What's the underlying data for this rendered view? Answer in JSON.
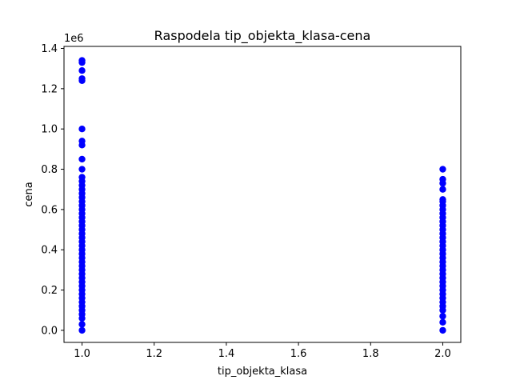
{
  "chart_data": {
    "type": "scatter",
    "title": "Raspodela tip_objekta_klasa-cena",
    "xlabel": "tip_objekta_klasa",
    "ylabel": "cena",
    "y_offset_label": "1e6",
    "xlim": [
      0.95,
      2.05
    ],
    "ylim": [
      -60000,
      1410000
    ],
    "x_ticks": [
      1.0,
      1.2,
      1.4,
      1.6,
      1.8,
      2.0
    ],
    "x_tick_labels": [
      "1.0",
      "1.2",
      "1.4",
      "1.6",
      "1.8",
      "2.0"
    ],
    "y_ticks": [
      0,
      200000,
      400000,
      600000,
      800000,
      1000000,
      1200000,
      1400000
    ],
    "y_tick_labels": [
      "0.0",
      "0.2",
      "0.4",
      "0.6",
      "0.8",
      "1.0",
      "1.2",
      "1.4"
    ],
    "grid": false,
    "marker_color": "#0000ff",
    "series": [
      {
        "x": [
          1,
          1,
          1,
          1,
          1,
          1,
          1,
          1,
          1,
          1,
          1,
          1,
          1,
          1,
          1,
          1,
          1,
          1,
          1,
          1,
          1,
          1,
          1,
          1,
          1,
          1,
          1,
          1,
          1,
          1,
          1,
          1,
          1,
          1,
          1,
          1,
          1,
          1,
          1,
          1,
          1,
          1,
          1,
          1,
          1,
          1,
          1,
          1
        ],
        "y": [
          1340000,
          1330000,
          1290000,
          1250000,
          1240000,
          1000000,
          940000,
          920000,
          850000,
          800000,
          760000,
          740000,
          720000,
          700000,
          680000,
          660000,
          640000,
          620000,
          600000,
          580000,
          560000,
          540000,
          520000,
          500000,
          480000,
          460000,
          440000,
          420000,
          400000,
          380000,
          360000,
          340000,
          320000,
          300000,
          280000,
          260000,
          240000,
          220000,
          200000,
          180000,
          160000,
          140000,
          120000,
          100000,
          80000,
          60000,
          30000,
          0
        ]
      },
      {
        "x": [
          2,
          2,
          2,
          2,
          2,
          2,
          2,
          2,
          2,
          2,
          2,
          2,
          2,
          2,
          2,
          2,
          2,
          2,
          2,
          2,
          2,
          2,
          2,
          2,
          2,
          2,
          2,
          2,
          2,
          2,
          2,
          2,
          2,
          2,
          2,
          2
        ],
        "y": [
          800000,
          750000,
          730000,
          700000,
          650000,
          640000,
          620000,
          600000,
          580000,
          560000,
          540000,
          520000,
          500000,
          480000,
          460000,
          440000,
          420000,
          400000,
          380000,
          360000,
          340000,
          320000,
          300000,
          280000,
          260000,
          240000,
          220000,
          200000,
          180000,
          160000,
          140000,
          120000,
          100000,
          70000,
          40000,
          0
        ]
      }
    ]
  }
}
